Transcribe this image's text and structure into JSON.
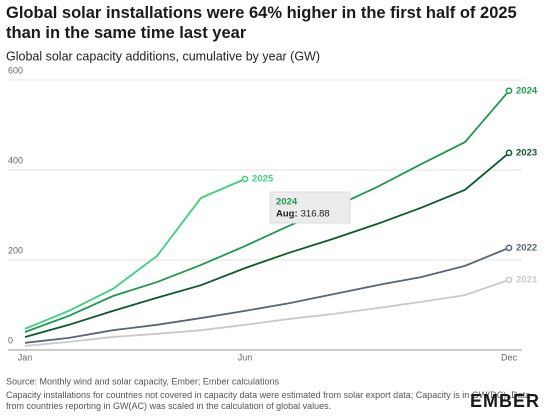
{
  "chart_data": {
    "type": "line",
    "title": "Global solar installations were 64% higher in the first half of 2025 than in the same time last year",
    "subtitle": "Global solar capacity additions, cumulative by year (GW)",
    "categories": [
      "Jan",
      null,
      null,
      null,
      null,
      "Jun",
      null,
      null,
      null,
      null,
      null,
      "Dec"
    ],
    "series": [
      {
        "name": "2021",
        "color": "#c9c9c9",
        "values": [
          9,
          18,
          29,
          36,
          44,
          56,
          69,
          80,
          93,
          107,
          122,
          156
        ]
      },
      {
        "name": "2022",
        "color": "#5b6577",
        "values": [
          16,
          27,
          44,
          56,
          71,
          87,
          104,
          124,
          144,
          162,
          187,
          227
        ]
      },
      {
        "name": "2023",
        "color": "#0b5a2a",
        "values": [
          29,
          56,
          87,
          116,
          144,
          182,
          216,
          247,
          280,
          316,
          356,
          438
        ]
      },
      {
        "name": "2024",
        "color": "#1e9a4b",
        "values": [
          40,
          76,
          120,
          151,
          189,
          231,
          276,
          316.88,
          362,
          413,
          462,
          576
        ]
      },
      {
        "name": "2025",
        "color": "#3ed07a",
        "values": [
          47,
          87,
          136,
          209,
          338,
          380,
          null,
          null,
          null,
          null,
          null,
          null
        ]
      }
    ],
    "ylim": [
      0,
      620
    ],
    "yticks": [
      0,
      200,
      400,
      600
    ],
    "grid": true,
    "tooltip": {
      "series": "2024",
      "label": "Aug:",
      "value": 316.88
    },
    "source": "Source: Monthly wind and solar capacity, Ember; Ember calculations",
    "note": "Capacity installations for countries not covered in capacity data were estimated from solar export data; Capacity is in GW(DC). Data from countries reporting in GW(AC) was scaled in the calculation of global values.",
    "logo": "EMBER"
  }
}
